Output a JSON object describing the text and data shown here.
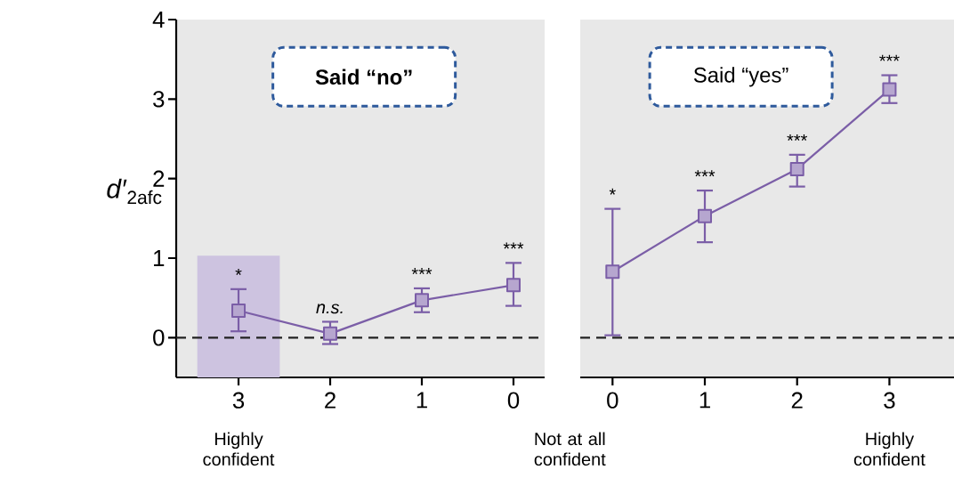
{
  "chart_data": [
    {
      "type": "line",
      "title": "Said “no”",
      "ylabel": "*d′*$_{2afc}$",
      "categories": [
        "3",
        "2",
        "1",
        "0"
      ],
      "ylim": [
        -0.5,
        4
      ],
      "yticks": [
        0,
        1,
        2,
        3,
        4
      ],
      "marker": "square",
      "line_style": "solid",
      "series": [
        {
          "type": "bar",
          "color": "#cdc3e0",
          "values": [
            1.53,
            null,
            null,
            null
          ],
          "base": [
            -0.5,
            null,
            null,
            null
          ]
        },
        {
          "color": "#7b5ea7",
          "values": [
            0.34,
            0.05,
            0.47,
            0.66
          ],
          "errors": [
            [
              0.08,
              0.61
            ],
            [
              -0.08,
              0.2
            ],
            [
              0.32,
              0.62
            ],
            [
              0.4,
              0.94
            ]
          ]
        }
      ],
      "ref_lines": [
        {
          "axis": "y",
          "value": 0,
          "line_style": "dashed",
          "color": "#222222"
        }
      ],
      "annotations": [
        "*",
        "*n.s.*",
        "***",
        "***",
        "Highly confident"
      ]
    },
    {
      "type": "line",
      "title": "Said “yes”",
      "categories": [
        "0",
        "1",
        "2",
        "3"
      ],
      "ylim": [
        -0.5,
        4
      ],
      "yticks": [
        0,
        1,
        2,
        3,
        4
      ],
      "tick_labels": "x",
      "marker": "square",
      "line_style": "solid",
      "series": [
        {
          "color": "#7b5ea7",
          "values": [
            0.83,
            1.53,
            2.12,
            3.12
          ],
          "errors": [
            [
              0.03,
              1.62
            ],
            [
              1.2,
              1.85
            ],
            [
              1.9,
              2.3
            ],
            [
              2.95,
              3.3
            ]
          ]
        }
      ],
      "ref_lines": [
        {
          "axis": "y",
          "value": 0,
          "line_style": "dashed",
          "color": "#222222"
        }
      ],
      "annotations": [
        "*",
        "***",
        "***",
        "***",
        "Not at all confident",
        "Highly confident"
      ]
    }
  ]
}
